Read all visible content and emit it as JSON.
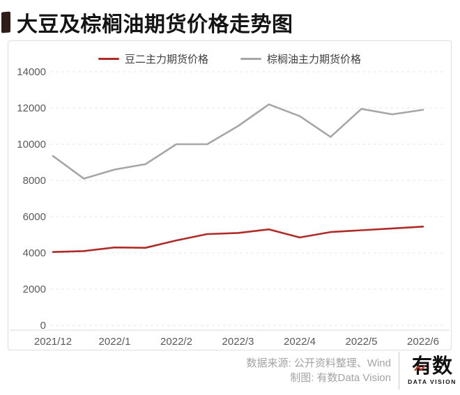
{
  "page": {
    "title": "大豆及棕榈油期货价格走势图"
  },
  "chart_data": {
    "type": "line",
    "title": "大豆及棕榈油期货价格走势图",
    "x_tick_labels": [
      "2021/12",
      "2022/1",
      "2022/2",
      "2022/3",
      "2022/4",
      "2022/5",
      "2022/6"
    ],
    "x_note": "13 semi-monthly data points; one tick label under every 2nd point",
    "series": [
      {
        "name": "豆二主力期货价格",
        "color": "#ae2b27",
        "values": [
          4050,
          4100,
          4300,
          4280,
          4690,
          5040,
          5100,
          5300,
          4850,
          5150,
          5250,
          5350,
          5450
        ]
      },
      {
        "name": "棕榈油主力期货价格",
        "color": "#a6a6a6",
        "values": [
          9350,
          8100,
          8600,
          8900,
          10000,
          10000,
          11000,
          12200,
          11550,
          10400,
          11950,
          11650,
          11900
        ]
      }
    ],
    "ylim": [
      0,
      14000
    ],
    "y_tick_step": 2000,
    "y_tick_labels": [
      "0",
      "2000",
      "4000",
      "6000",
      "8000",
      "10000",
      "12000",
      "14000"
    ],
    "grid": "horizontal dashed gridlines, no vertical grid",
    "legend_position": "top-center"
  },
  "footer": {
    "source_line": "数据来源: 公开资料整理、Wind",
    "credit_line": "制图: 有数Data Vision",
    "logo_text": "有数",
    "logo_subtext": "DATA VISION"
  },
  "colors": {
    "accent_red": "#ae2b27",
    "line_gray": "#a6a6a6",
    "title_bar": "#2d1c17",
    "logo_red": "#c0392b",
    "grid_line": "#e6e6e6",
    "axis_line": "#d9d9d9",
    "axis_text": "#5a5a5a",
    "footer_text": "#a3a3a3",
    "card_border": "#dcdcdc"
  }
}
